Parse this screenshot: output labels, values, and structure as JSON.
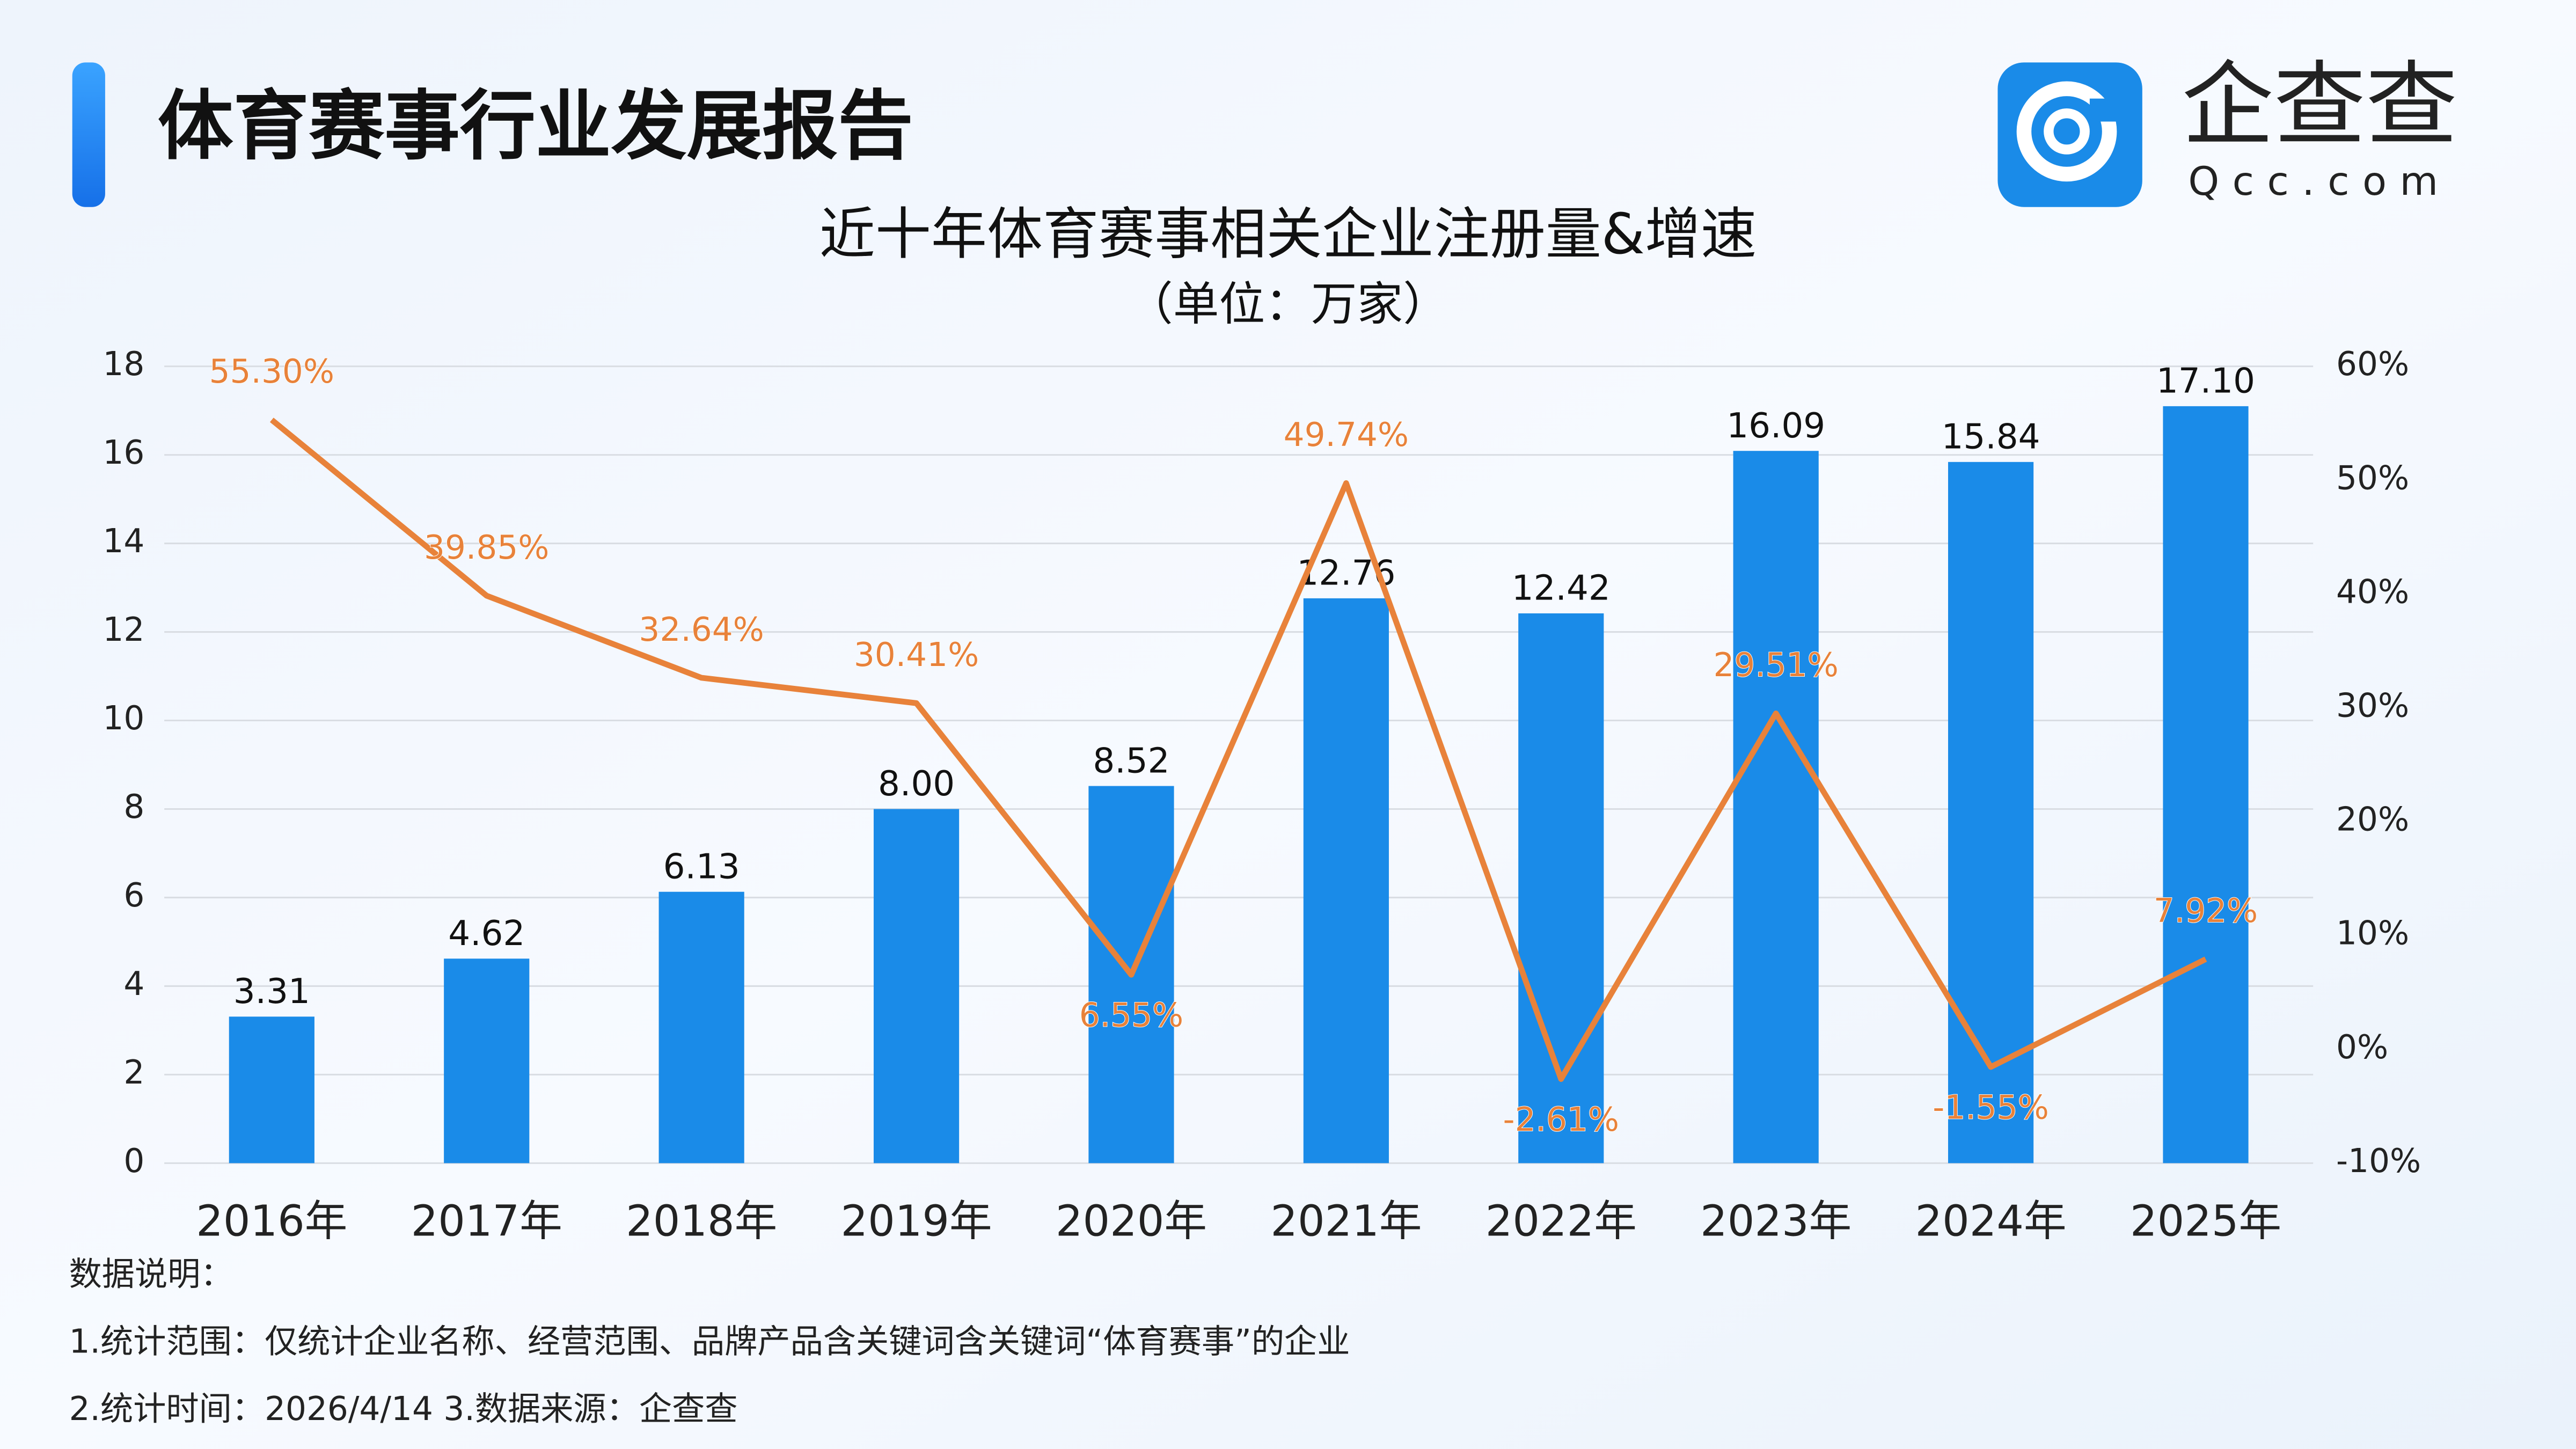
{
  "header": {
    "title": "体育赛事行业发展报告",
    "logo_text": "企查查",
    "logo_domain": "Qcc.com"
  },
  "chart_data": {
    "type": "combo",
    "title": "近十年体育赛事相关企业注册量&增速",
    "subtitle": "（单位：万家）",
    "categories": [
      "2016年",
      "2017年",
      "2018年",
      "2019年",
      "2020年",
      "2021年",
      "2022年",
      "2023年",
      "2024年",
      "2025年"
    ],
    "series": [
      {
        "type": "bar",
        "color": "#1a8be8",
        "values": [
          3.31,
          4.62,
          6.13,
          8.0,
          8.52,
          12.76,
          12.42,
          16.09,
          15.84,
          17.1
        ],
        "value_labels": [
          "3.31",
          "4.62",
          "6.13",
          "8.00",
          "8.52",
          "12.76",
          "12.42",
          "16.09",
          "15.84",
          "17.10"
        ]
      },
      {
        "type": "line",
        "axis": "y2",
        "color": "#e8823a",
        "values": [
          55.3,
          39.85,
          32.64,
          30.41,
          6.55,
          49.74,
          -2.61,
          29.51,
          -1.55,
          7.92
        ],
        "value_labels": [
          "55.30%",
          "39.85%",
          "32.64%",
          "30.41%",
          "6.55%",
          "49.74%",
          "-2.61%",
          "29.51%",
          "-1.55%",
          "7.92%"
        ]
      }
    ],
    "ylim": [
      0,
      18
    ],
    "yticks": [
      0,
      2,
      4,
      6,
      8,
      10,
      12,
      14,
      16,
      18
    ],
    "y2lim": [
      -10,
      60
    ],
    "y2ticks": [
      {
        "value": -10,
        "label": "-10%"
      },
      {
        "value": 0,
        "label": "0%"
      },
      {
        "value": 10,
        "label": "10%"
      },
      {
        "value": 20,
        "label": "20%"
      },
      {
        "value": 30,
        "label": "30%"
      },
      {
        "value": 40,
        "label": "40%"
      },
      {
        "value": 50,
        "label": "50%"
      },
      {
        "value": 60,
        "label": "60%"
      }
    ],
    "grid": true
  },
  "notes": [
    "数据说明：",
    "1.统计范围：仅统计企业名称、经营范围、品牌产品含关键词含关键词“体育赛事”的企业",
    "2.统计时间：2026/4/14 3.数据来源：企查查"
  ]
}
